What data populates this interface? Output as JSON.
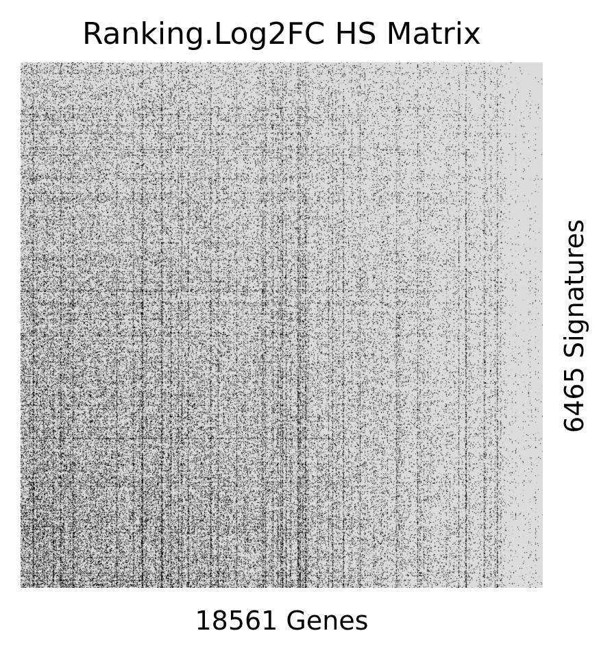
{
  "chart_data": {
    "type": "heatmap",
    "title": "Ranking.Log2FC HS Matrix",
    "xlabel": "18561 Genes",
    "ylabel": "6465 Signatures",
    "n_columns": 18561,
    "n_rows": 6465,
    "grid": false,
    "legend": "none",
    "colors": {
      "background": "#dcdcdc",
      "mark": "#000000",
      "mid": "#6e6e6e",
      "accent_blue": "#9aa7d8",
      "accent_red": "#e6a8a8"
    }
  }
}
